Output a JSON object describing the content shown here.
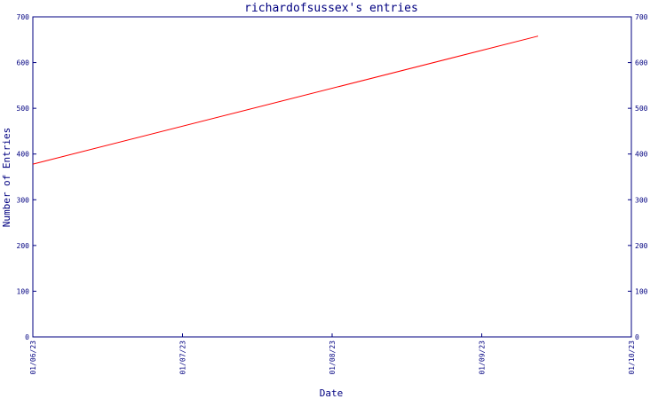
{
  "chart_data": {
    "type": "line",
    "title": "richardofsussex's entries",
    "xlabel": "Date",
    "ylabel": "Number of Entries",
    "x_ticks": [
      "01/06/23",
      "01/07/23",
      "01/08/23",
      "01/09/23",
      "01/10/23"
    ],
    "y_ticks": [
      0,
      100,
      200,
      300,
      400,
      500,
      600,
      700
    ],
    "ylim": [
      0,
      700
    ],
    "xlim": [
      "2023-06-01",
      "2023-10-01"
    ],
    "grid": false,
    "series": [
      {
        "color": "#ff0000",
        "points": [
          {
            "x": "2023-06-01",
            "y": 378
          },
          {
            "x": "2023-09-12",
            "y": 658
          }
        ]
      }
    ]
  },
  "colors": {
    "axis": "#000080",
    "series": "#ff0000",
    "background": "#ffffff"
  }
}
